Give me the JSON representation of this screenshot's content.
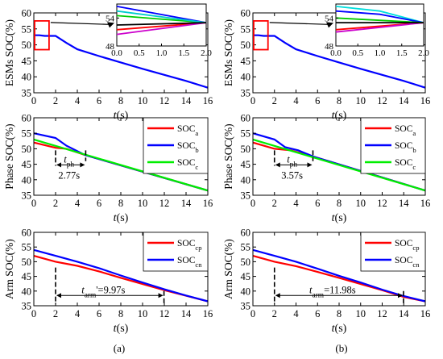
{
  "chart_data": [
    {
      "id": "a1",
      "type": "line",
      "ylabel": "ESMs SOC(%)",
      "xlabel": "t(s)",
      "xlim": [
        0,
        16
      ],
      "ylim": [
        35,
        60
      ],
      "xticks": [
        0,
        2,
        4,
        6,
        8,
        10,
        12,
        14,
        16
      ],
      "yticks": [
        35,
        40,
        45,
        50,
        55,
        60
      ],
      "series": [
        {
          "color": "#0000ff",
          "x": [
            0,
            0.5,
            1,
            1.5,
            2,
            3,
            4,
            6,
            8,
            10,
            12,
            14,
            16
          ],
          "y": [
            53,
            53,
            52.8,
            52.8,
            52.8,
            50.6,
            48.6,
            46.5,
            44.5,
            42.5,
            40.6,
            38.7,
            36.6
          ]
        }
      ],
      "inset": {
        "xlim": [
          0,
          2
        ],
        "ylim": [
          48,
          57
        ],
        "xticks": [
          "0.0",
          "0.5",
          "1.0",
          "1.5",
          "2.0"
        ],
        "yticks": [
          48,
          54
        ],
        "series": [
          {
            "color": "#0000ff",
            "x": [
              0,
              2
            ],
            "y": [
              56.5,
              53
            ]
          },
          {
            "color": "#ff0000",
            "x": [
              0,
              2
            ],
            "y": [
              51.5,
              53
            ]
          },
          {
            "color": "#00cc00",
            "x": [
              0,
              2
            ],
            "y": [
              54.5,
              53
            ]
          },
          {
            "color": "#00cccc",
            "x": [
              0,
              2
            ],
            "y": [
              55.5,
              53
            ]
          },
          {
            "color": "#cc00cc",
            "x": [
              0,
              2
            ],
            "y": [
              50.5,
              53
            ]
          },
          {
            "color": "#000000",
            "x": [
              0,
              2
            ],
            "y": [
              52.5,
              53
            ]
          }
        ]
      }
    },
    {
      "id": "b1",
      "type": "line",
      "ylabel": "ESMs SOC(%)",
      "xlabel": "t(s)",
      "xlim": [
        0,
        16
      ],
      "ylim": [
        35,
        60
      ],
      "xticks": [
        0,
        2,
        4,
        6,
        8,
        10,
        12,
        14,
        16
      ],
      "yticks": [
        35,
        40,
        45,
        50,
        55,
        60
      ],
      "series": [
        {
          "color": "#0000ff",
          "x": [
            0,
            0.5,
            1,
            1.5,
            2,
            3,
            4,
            6,
            8,
            10,
            12,
            14,
            16
          ],
          "y": [
            53,
            53,
            52.8,
            52.8,
            52.8,
            50.6,
            48.6,
            46.5,
            44.5,
            42.5,
            40.6,
            38.7,
            36.6
          ]
        }
      ],
      "inset": {
        "xlim": [
          0,
          2
        ],
        "ylim": [
          48,
          57
        ],
        "xticks": [
          "0.0",
          "0.5",
          "1.0",
          "1.5",
          "2.0"
        ],
        "yticks": [
          48,
          54
        ],
        "series": [
          {
            "color": "#00dddd",
            "x": [
              0,
              1,
              2
            ],
            "y": [
              56.5,
              55.5,
              53
            ]
          },
          {
            "color": "#0000ff",
            "x": [
              0,
              1,
              2
            ],
            "y": [
              55.5,
              54.8,
              53
            ]
          },
          {
            "color": "#ff0000",
            "x": [
              0,
              2
            ],
            "y": [
              51.5,
              53
            ]
          },
          {
            "color": "#00cc00",
            "x": [
              0,
              2
            ],
            "y": [
              54,
              53
            ]
          },
          {
            "color": "#cc00cc",
            "x": [
              0,
              2
            ],
            "y": [
              51,
              53
            ]
          },
          {
            "color": "#000000",
            "x": [
              0,
              2
            ],
            "y": [
              53,
              53
            ]
          }
        ]
      }
    },
    {
      "id": "a2",
      "type": "line",
      "ylabel": "Phase SOC(%)",
      "xlabel": "t(s)",
      "xlim": [
        0,
        16
      ],
      "ylim": [
        35,
        60
      ],
      "xticks": [
        0,
        2,
        4,
        6,
        8,
        10,
        12,
        14,
        16
      ],
      "yticks": [
        35,
        40,
        45,
        50,
        55,
        60
      ],
      "legend_position": "top-right",
      "series": [
        {
          "name": "SOC",
          "sub": "a",
          "color": "#ff0000",
          "x": [
            0,
            2,
            3,
            4.7,
            16
          ],
          "y": [
            52,
            50.3,
            50,
            48,
            36.5
          ]
        },
        {
          "name": "SOC",
          "sub": "b",
          "color": "#0000ff",
          "x": [
            0,
            2,
            3,
            4.7,
            16
          ],
          "y": [
            55,
            53.5,
            51,
            48,
            36.5
          ]
        },
        {
          "name": "SOC",
          "sub": "c",
          "color": "#00ee00",
          "x": [
            0,
            16
          ],
          "y": [
            53,
            36.5
          ]
        }
      ],
      "annotation": {
        "symbol": "t",
        "sub": "ph",
        "value": "2.77s",
        "x_start": 2,
        "x_end": 4.77
      }
    },
    {
      "id": "b2",
      "type": "line",
      "ylabel": "Phase SOC(%)",
      "xlabel": "t(s)",
      "xlim": [
        0,
        16
      ],
      "ylim": [
        35,
        60
      ],
      "xticks": [
        0,
        2,
        4,
        6,
        8,
        10,
        12,
        14,
        16
      ],
      "yticks": [
        35,
        40,
        45,
        50,
        55,
        60
      ],
      "legend_position": "top-right",
      "series": [
        {
          "name": "SOC",
          "sub": "a",
          "color": "#ff0000",
          "x": [
            0,
            2,
            3.5,
            5.6,
            16
          ],
          "y": [
            52,
            50,
            49.5,
            47.5,
            36.5
          ]
        },
        {
          "name": "SOC",
          "sub": "b",
          "color": "#0000ff",
          "x": [
            0,
            2,
            3,
            4.2,
            5.6,
            16
          ],
          "y": [
            55,
            53,
            50.5,
            49.5,
            47.5,
            36.5
          ]
        },
        {
          "name": "SOC",
          "sub": "c",
          "color": "#00ee00",
          "x": [
            0,
            16
          ],
          "y": [
            53,
            36.5
          ]
        }
      ],
      "annotation": {
        "symbol": "t",
        "sub": "ph",
        "value": "3.57s",
        "x_start": 2,
        "x_end": 5.57
      }
    },
    {
      "id": "a3",
      "type": "line",
      "ylabel": "Arm SOC(%)",
      "xlabel": "t(s)",
      "xlim": [
        0,
        16
      ],
      "ylim": [
        35,
        60
      ],
      "xticks": [
        0,
        2,
        4,
        6,
        8,
        10,
        12,
        14,
        16
      ],
      "yticks": [
        35,
        40,
        45,
        50,
        55,
        60
      ],
      "legend_position": "top-right",
      "series": [
        {
          "name": "SOC",
          "sub": "cp",
          "color": "#ff0000",
          "x": [
            0,
            2,
            4,
            6,
            8,
            10,
            12,
            14,
            16
          ],
          "y": [
            52,
            50,
            48.6,
            46.7,
            44.5,
            42.4,
            40.3,
            38.4,
            36.5
          ]
        },
        {
          "name": "SOC",
          "sub": "cn",
          "color": "#0000ff",
          "x": [
            0,
            2,
            4,
            6,
            8,
            10,
            12,
            14,
            16
          ],
          "y": [
            54,
            52,
            50,
            47.8,
            45.3,
            42.9,
            40.6,
            38.5,
            36.5
          ]
        }
      ],
      "annotation": {
        "symbol": "t",
        "sub": "arm",
        "suffix": "'=9.97s",
        "x_start": 2,
        "x_end": 11.97
      }
    },
    {
      "id": "b3",
      "type": "line",
      "ylabel": "Arm SOC(%)",
      "xlabel": "t(s)",
      "xlim": [
        0,
        16
      ],
      "ylim": [
        35,
        60
      ],
      "xticks": [
        0,
        2,
        4,
        6,
        8,
        10,
        12,
        14,
        16
      ],
      "yticks": [
        35,
        40,
        45,
        50,
        55,
        60
      ],
      "legend_position": "top-right",
      "series": [
        {
          "name": "SOC",
          "sub": "cp",
          "color": "#ff0000",
          "x": [
            0,
            2,
            4,
            6,
            8,
            10,
            12,
            14,
            16
          ],
          "y": [
            52,
            50,
            48.5,
            46.5,
            44.5,
            42.4,
            40.3,
            38,
            36.5
          ]
        },
        {
          "name": "SOC",
          "sub": "cn",
          "color": "#0000ff",
          "x": [
            0,
            2,
            4,
            6,
            8,
            10,
            12,
            14,
            16
          ],
          "y": [
            54,
            52,
            50,
            47.6,
            45.2,
            42.9,
            40.5,
            38.3,
            36.5
          ]
        }
      ],
      "annotation": {
        "symbol": "t",
        "sub": "arm",
        "suffix": "=11.98s",
        "x_start": 2,
        "x_end": 13.98
      }
    }
  ],
  "captions": [
    "(a)",
    "(b)"
  ],
  "zoom_box_color": "#ff0000"
}
